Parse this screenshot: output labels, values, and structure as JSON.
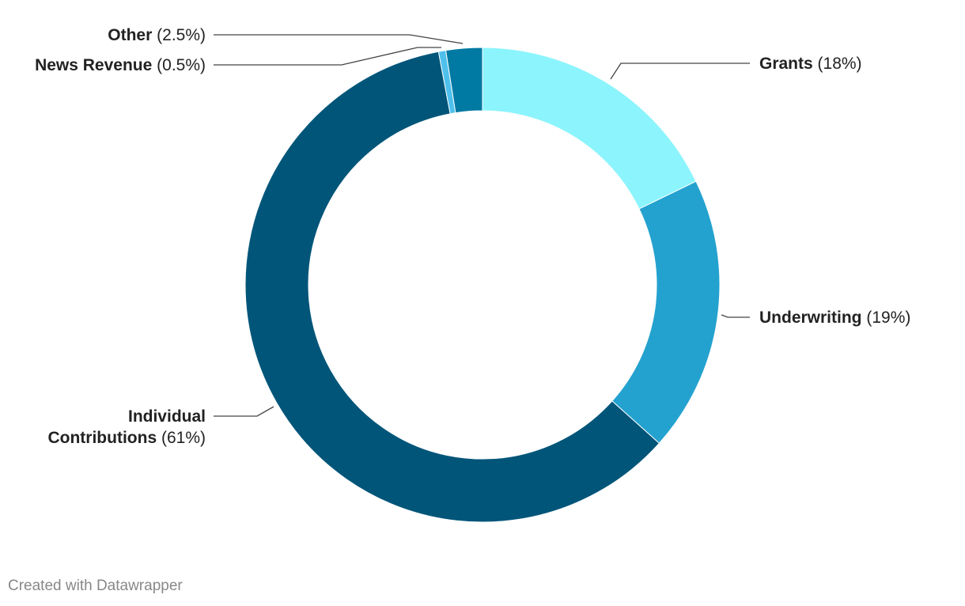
{
  "chart_data": {
    "type": "donut",
    "categories": [
      "Grants",
      "Underwriting",
      "Individual Contributions",
      "News Revenue",
      "Other"
    ],
    "values": [
      18,
      19,
      61,
      0.5,
      2.5
    ],
    "value_labels": [
      "(18%)",
      "(19%)",
      "(61%)",
      "(0.5%)",
      "(2.5%)"
    ],
    "colors": [
      "#8cf4fc",
      "#24a2cf",
      "#005579",
      "#4fc0ec",
      "#0079a3"
    ],
    "footer": "Created with Datawrapper"
  }
}
